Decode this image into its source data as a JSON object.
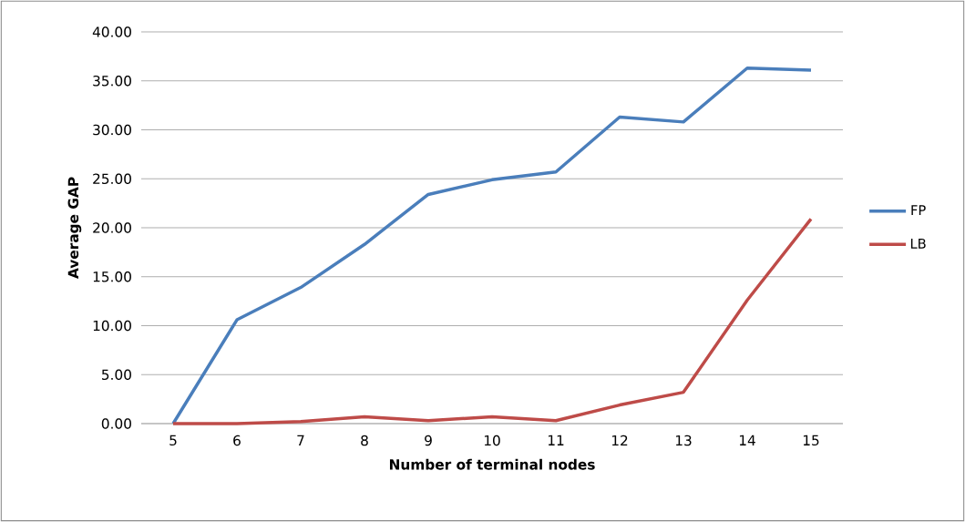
{
  "chart_data": {
    "type": "line",
    "xlabel": "Number of terminal nodes",
    "ylabel": "Average GAP",
    "categories": [
      "5",
      "6",
      "7",
      "8",
      "9",
      "10",
      "11",
      "12",
      "13",
      "14",
      "15"
    ],
    "series": [
      {
        "name": "FP",
        "color": "#4a7ebb",
        "values": [
          0,
          10.6,
          13.9,
          18.3,
          23.4,
          24.9,
          25.7,
          31.3,
          30.8,
          36.3,
          36.1
        ]
      },
      {
        "name": "LB",
        "color": "#be4b48",
        "values": [
          0,
          0,
          0.2,
          0.7,
          0.3,
          0.7,
          0.3,
          1.9,
          3.2,
          12.6,
          20.9
        ]
      }
    ],
    "ylim": [
      0,
      40
    ],
    "yticks": [
      {
        "value": 0,
        "label": "0.00"
      },
      {
        "value": 5,
        "label": "5.00"
      },
      {
        "value": 10,
        "label": "10.00"
      },
      {
        "value": 15,
        "label": "15.00"
      },
      {
        "value": 20,
        "label": "20.00"
      },
      {
        "value": 25,
        "label": "25.00"
      },
      {
        "value": 30,
        "label": "30.00"
      },
      {
        "value": 35,
        "label": "35.00"
      },
      {
        "value": 40,
        "label": "40.00"
      }
    ],
    "grid": "y",
    "legend": "right",
    "marker": "none",
    "line_style": "solid"
  }
}
